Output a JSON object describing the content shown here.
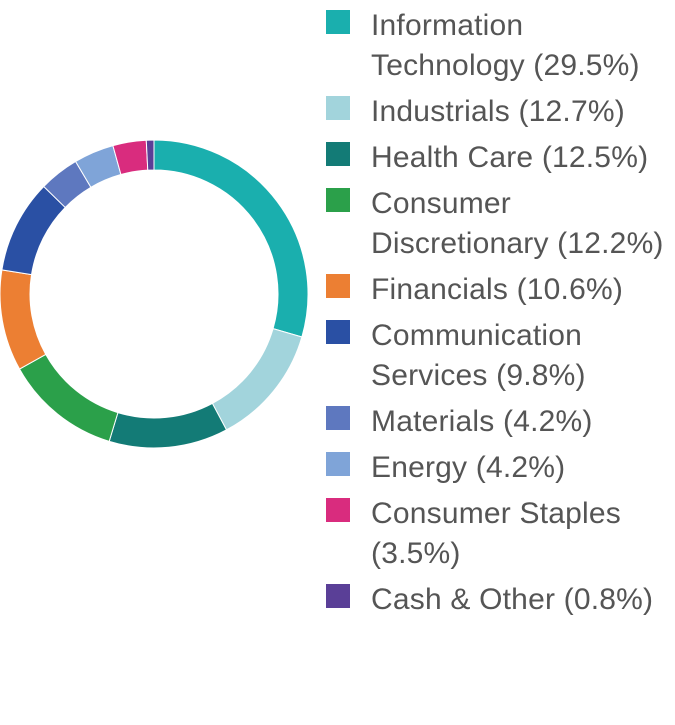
{
  "chart_data": {
    "type": "pie",
    "donut": true,
    "legend_position": "right",
    "categories": [
      "Information Technology (29.5%)",
      "Industrials (12.7%)",
      "Health Care (12.5%)",
      "Consumer Discretionary (12.2%)",
      "Financials (10.6%)",
      "Communication Services (9.8%)",
      "Materials (4.2%)",
      "Energy (4.2%)",
      "Consumer Staples (3.5%)",
      "Cash & Other (0.8%)"
    ],
    "values": [
      29.5,
      12.7,
      12.5,
      12.2,
      10.6,
      9.8,
      4.2,
      4.2,
      3.5,
      0.8
    ],
    "colors": [
      "#1aafae",
      "#a2d4dc",
      "#137b76",
      "#2ba04a",
      "#ec7f33",
      "#2a50a4",
      "#5e78bf",
      "#7fa4d8",
      "#d92c7e",
      "#5a3f97"
    ]
  }
}
